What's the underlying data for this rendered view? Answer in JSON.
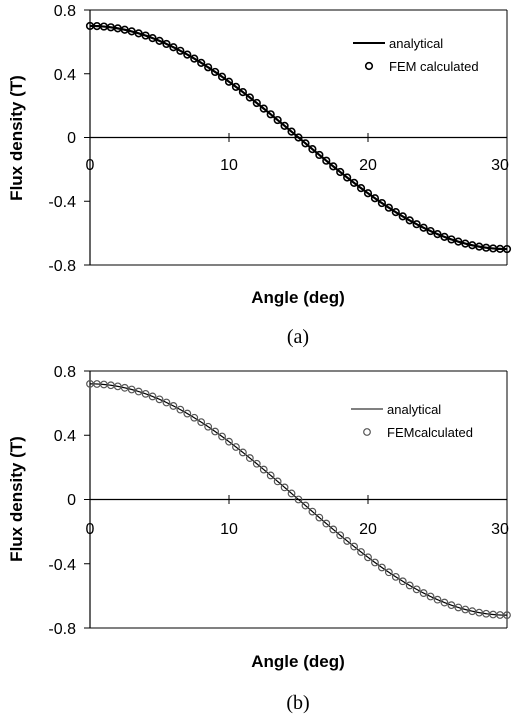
{
  "chart_data": [
    {
      "type": "line",
      "caption": "(a)",
      "xlabel": "Angle (deg)",
      "ylabel": "Flux density (T)",
      "xlim": [
        0,
        30
      ],
      "ylim": [
        -0.8,
        0.8
      ],
      "xticks": [
        "0",
        "10",
        "20",
        "30"
      ],
      "yticks": [
        "0.8",
        "0.4",
        "0",
        "-0.4",
        "-0.8"
      ],
      "grid": false,
      "legend_position": "top-right",
      "line": {
        "name": "analytical",
        "amplitude": 0.7,
        "period_deg": 60,
        "x_step": 0.5,
        "color": "#000000"
      },
      "markers": {
        "name": "FEM calculated",
        "amplitude": 0.7,
        "period_deg": 60,
        "x_step": 0.5,
        "color": "#000000"
      }
    },
    {
      "type": "line",
      "caption": "(b)",
      "xlabel": "Angle (deg)",
      "ylabel": "Flux density (T)",
      "xlim": [
        0,
        30
      ],
      "ylim": [
        -0.8,
        0.8
      ],
      "xticks": [
        "0",
        "10",
        "20",
        "30"
      ],
      "yticks": [
        "0.8",
        "0.4",
        "0",
        "-0.4",
        "-0.8"
      ],
      "grid": false,
      "legend_position": "top-right",
      "line": {
        "name": "analytical",
        "amplitude": 0.72,
        "period_deg": 60,
        "x_step": 0.5,
        "color": "#000000"
      },
      "markers": {
        "name": "FEMcalculated",
        "amplitude": 0.72,
        "period_deg": 60,
        "x_step": 0.5,
        "color": "#555555"
      }
    }
  ]
}
